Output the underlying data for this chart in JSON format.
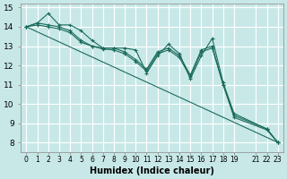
{
  "xlabel": "Humidex (Indice chaleur)",
  "ylabel": "",
  "background_color": "#c8e8e8",
  "grid_color": "#ffffff",
  "line_color": "#1a6b5a",
  "xlim": [
    -0.5,
    23.5
  ],
  "ylim": [
    7.5,
    15.2
  ],
  "yticks": [
    8,
    9,
    10,
    11,
    12,
    13,
    14,
    15
  ],
  "xtick_positions": [
    0,
    1,
    2,
    3,
    4,
    5,
    6,
    7,
    8,
    9,
    10,
    11,
    12,
    13,
    14,
    15,
    16,
    17,
    18,
    19,
    21,
    22,
    23
  ],
  "xtick_labels": [
    "0",
    "1",
    "2",
    "3",
    "4",
    "5",
    "6",
    "7",
    "8",
    "9",
    "10",
    "11",
    "12",
    "13",
    "14",
    "15",
    "16",
    "17",
    "18",
    "19",
    "21",
    "22",
    "23"
  ],
  "lines": [
    {
      "x": [
        0,
        1,
        2,
        3,
        4,
        5,
        6,
        7,
        8,
        9,
        10,
        11,
        12,
        13,
        14,
        15,
        16,
        17,
        18,
        19,
        22,
        23
      ],
      "y": [
        14.0,
        14.2,
        14.7,
        14.1,
        14.1,
        13.8,
        13.3,
        12.9,
        12.9,
        12.9,
        12.8,
        11.6,
        12.5,
        13.1,
        12.6,
        11.3,
        12.5,
        13.4,
        11.1,
        9.5,
        8.7,
        8.0
      ]
    },
    {
      "x": [
        0,
        1,
        2,
        3,
        4,
        5,
        6,
        7,
        8,
        9,
        10,
        11,
        12,
        13,
        14,
        15,
        16,
        17,
        18,
        19,
        22,
        23
      ],
      "y": [
        14.0,
        14.2,
        14.1,
        14.0,
        13.8,
        13.3,
        13.0,
        12.9,
        12.9,
        12.7,
        12.3,
        11.8,
        12.7,
        12.9,
        12.5,
        11.5,
        12.8,
        13.0,
        11.0,
        9.4,
        8.7,
        8.0
      ]
    },
    {
      "x": [
        0,
        1,
        2,
        3,
        4,
        5,
        6,
        7,
        8,
        9,
        10,
        11,
        12,
        13,
        14,
        15,
        16,
        17,
        18,
        19,
        22,
        23
      ],
      "y": [
        14.0,
        14.1,
        14.0,
        13.9,
        13.7,
        13.2,
        13.0,
        12.85,
        12.8,
        12.6,
        12.2,
        11.7,
        12.6,
        12.8,
        12.4,
        11.4,
        12.7,
        12.9,
        11.0,
        9.3,
        8.65,
        8.0
      ]
    },
    {
      "x": [
        0,
        23
      ],
      "y": [
        14.0,
        8.0
      ]
    }
  ]
}
